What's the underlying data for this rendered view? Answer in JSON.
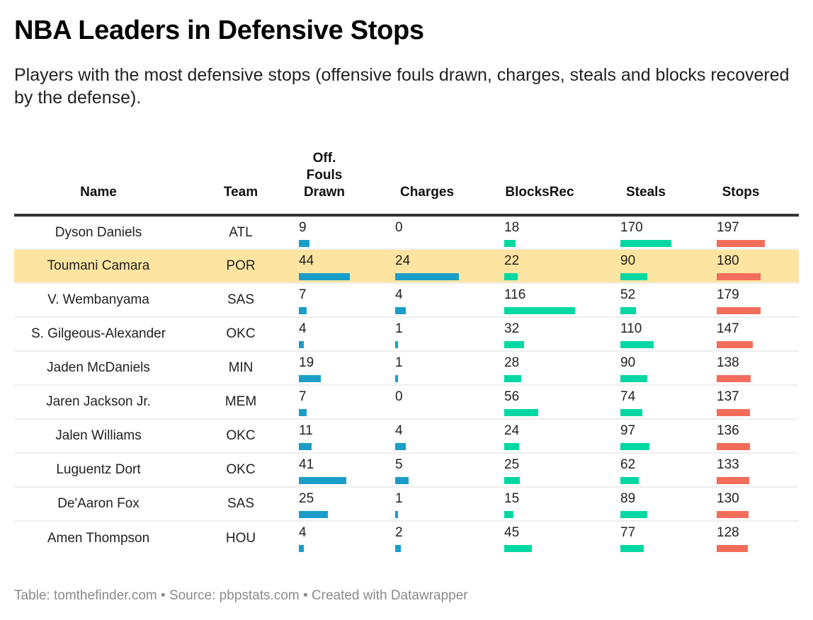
{
  "title": "NBA Leaders in Defensive Stops",
  "subtitle": "Players with the most defensive stops (offensive fouls drawn, charges, steals and blocks recovered by the defense).",
  "footer": "Table: tomthefinder.com • Source: pbpstats.com • Created with Datawrapper",
  "colors": {
    "off_fouls": "#1a9ec9",
    "charges": "#1a9ec9",
    "blocks_rec": "#00d8a3",
    "steals": "#00d8a3",
    "stops": "#f46d5a",
    "highlight": "#fde5a1"
  },
  "headers": {
    "name": "Name",
    "team": "Team",
    "off_fouls": [
      "Off.",
      "Fouls",
      "Drawn"
    ],
    "charges": "Charges",
    "blocks_rec": "BlocksRec",
    "steals": "Steals",
    "stops": "Stops"
  },
  "chart_data": {
    "type": "table",
    "title": "NBA Leaders in Defensive Stops",
    "columns": [
      "Name",
      "Team",
      "Off. Fouls Drawn",
      "Charges",
      "BlocksRec",
      "Steals",
      "Stops"
    ],
    "bar_max": {
      "off_fouls": 44,
      "charges": 24,
      "blocks_rec": 116,
      "steals": 170,
      "stops": 197
    },
    "highlighted_row": 1,
    "rows": [
      {
        "name": "Dyson Daniels",
        "team": "ATL",
        "off_fouls": 9,
        "charges": 0,
        "blocks_rec": 18,
        "steals": 170,
        "stops": 197
      },
      {
        "name": "Toumani Camara",
        "team": "POR",
        "off_fouls": 44,
        "charges": 24,
        "blocks_rec": 22,
        "steals": 90,
        "stops": 180
      },
      {
        "name": "V. Wembanyama",
        "team": "SAS",
        "off_fouls": 7,
        "charges": 4,
        "blocks_rec": 116,
        "steals": 52,
        "stops": 179
      },
      {
        "name": "S. Gilgeous-Alexander",
        "team": "OKC",
        "off_fouls": 4,
        "charges": 1,
        "blocks_rec": 32,
        "steals": 110,
        "stops": 147
      },
      {
        "name": "Jaden McDaniels",
        "team": "MIN",
        "off_fouls": 19,
        "charges": 1,
        "blocks_rec": 28,
        "steals": 90,
        "stops": 138
      },
      {
        "name": "Jaren Jackson Jr.",
        "team": "MEM",
        "off_fouls": 7,
        "charges": 0,
        "blocks_rec": 56,
        "steals": 74,
        "stops": 137
      },
      {
        "name": "Jalen Williams",
        "team": "OKC",
        "off_fouls": 11,
        "charges": 4,
        "blocks_rec": 24,
        "steals": 97,
        "stops": 136
      },
      {
        "name": "Luguentz Dort",
        "team": "OKC",
        "off_fouls": 41,
        "charges": 5,
        "blocks_rec": 25,
        "steals": 62,
        "stops": 133
      },
      {
        "name": "De'Aaron Fox",
        "team": "SAS",
        "off_fouls": 25,
        "charges": 1,
        "blocks_rec": 15,
        "steals": 89,
        "stops": 130
      },
      {
        "name": "Amen Thompson",
        "team": "HOU",
        "off_fouls": 4,
        "charges": 2,
        "blocks_rec": 45,
        "steals": 77,
        "stops": 128
      }
    ]
  }
}
